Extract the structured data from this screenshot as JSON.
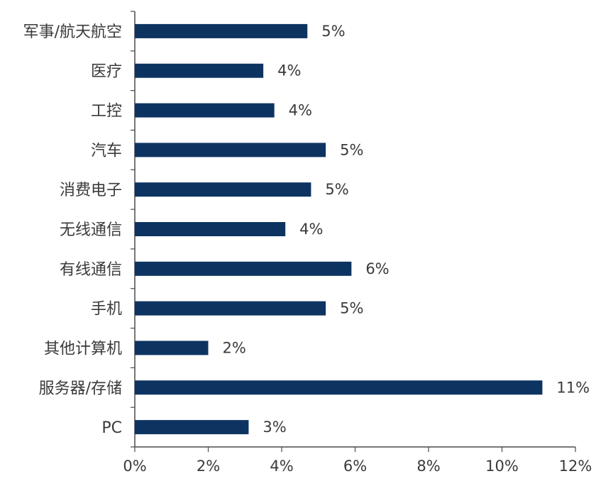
{
  "chart_data": {
    "type": "bar",
    "orientation": "horizontal",
    "categories": [
      "军事/航天航空",
      "医疗",
      "工控",
      "汽车",
      "消费电子",
      "无线通信",
      "有线通信",
      "手机",
      "其他计算机",
      "服务器/存储",
      "PC"
    ],
    "values": [
      4.7,
      3.5,
      3.8,
      5.2,
      4.8,
      4.1,
      5.9,
      5.2,
      2.0,
      11.1,
      3.1
    ],
    "data_labels": [
      "5%",
      "4%",
      "4%",
      "5%",
      "5%",
      "4%",
      "6%",
      "5%",
      "2%",
      "11%",
      "3%"
    ],
    "x_ticks": [
      "0%",
      "2%",
      "4%",
      "6%",
      "8%",
      "10%",
      "12%"
    ],
    "xlim": [
      0,
      12
    ],
    "title": "",
    "xlabel": "",
    "ylabel": "",
    "grid": false,
    "bar_color": "#0d3461"
  }
}
